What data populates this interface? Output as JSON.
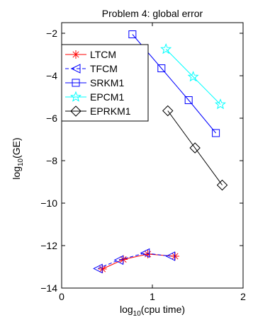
{
  "chart_data": {
    "type": "line",
    "title": "Problem 4: global error",
    "xlabel_main": "log",
    "xlabel_sub": "10",
    "xlabel_rest": "(cpu time)",
    "ylabel_main": "log",
    "ylabel_sub": "10",
    "ylabel_rest": "(GE)",
    "xlim": [
      0,
      2
    ],
    "ylim": [
      -14,
      -1.5
    ],
    "xticks": [
      0,
      1,
      2
    ],
    "xtick_labels": [
      "0",
      "1",
      "2"
    ],
    "yticks": [
      -14,
      -12,
      -10,
      -8,
      -6,
      -4,
      -2
    ],
    "ytick_labels": [
      "−14",
      "−12",
      "−10",
      "−8",
      "−6",
      "−4",
      "−2"
    ],
    "grid": false,
    "legend_position": "top-left",
    "series": [
      {
        "name": "LTCM",
        "color": "#ff0000",
        "marker": "asterisk-icon",
        "line_style": "solid",
        "x": [
          0.45,
          0.68,
          0.95,
          1.25
        ],
        "y": [
          -13.1,
          -12.65,
          -12.4,
          -12.5
        ]
      },
      {
        "name": "TFCM",
        "color": "#0000ff",
        "marker": "triangle-left-icon",
        "line_style": "dashed",
        "x": [
          0.4,
          0.63,
          0.92,
          1.2
        ],
        "y": [
          -13.08,
          -12.68,
          -12.35,
          -12.5
        ]
      },
      {
        "name": "SRKM1",
        "color": "#0000ff",
        "marker": "square-icon",
        "line_style": "solid",
        "x": [
          0.78,
          1.1,
          1.4,
          1.7
        ],
        "y": [
          -2.05,
          -3.65,
          -5.15,
          -6.7
        ]
      },
      {
        "name": "EPCM1",
        "color": "#00ffff",
        "marker": "star-icon",
        "line_style": "solid",
        "x": [
          1.15,
          1.45,
          1.75
        ],
        "y": [
          -2.75,
          -4.05,
          -5.35
        ]
      },
      {
        "name": "EPRKM1",
        "color": "#000000",
        "marker": "diamond-icon",
        "line_style": "solid",
        "x": [
          1.17,
          1.47,
          1.77
        ],
        "y": [
          -5.65,
          -7.4,
          -9.15
        ]
      }
    ]
  }
}
